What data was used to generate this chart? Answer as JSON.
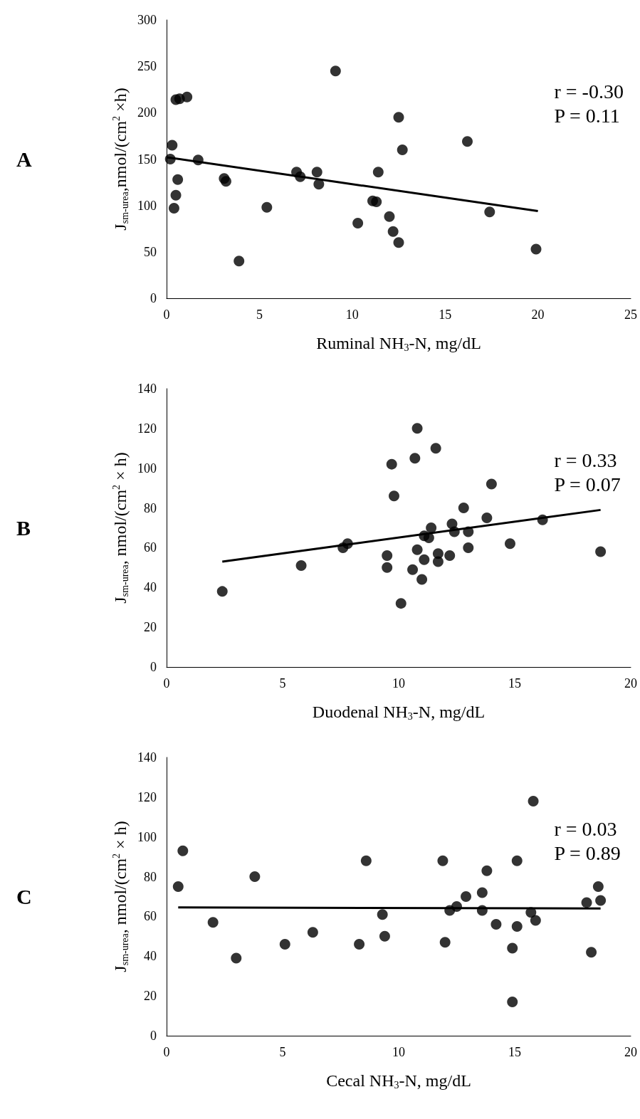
{
  "chart_data": [
    {
      "type": "scatter",
      "title": "A",
      "xlabel": "Ruminal NH$_{3}$-N, mg/dL",
      "ylabel": "J$_{sm-urea}$,nmol/(cm$^{2}$ ×h)",
      "annotations": [
        "r = -0.30",
        "P = 0.11"
      ],
      "xlim": [
        0,
        25
      ],
      "xticks": [
        0,
        5,
        10,
        15,
        20,
        25
      ],
      "ylim": [
        0,
        300
      ],
      "yticks": [
        0,
        50,
        100,
        150,
        200,
        250,
        300
      ],
      "line_style": "solid",
      "series": [
        {
          "marker": "circle",
          "color": "#000000",
          "x": [
            0.2,
            0.3,
            0.5,
            0.7,
            1.1,
            0.6,
            0.5,
            0.4,
            1.7,
            3.1,
            3.2,
            3.9,
            5.4,
            7,
            7.2,
            8.1,
            8.2,
            9.1,
            10.3,
            11.1,
            11.3,
            11.4,
            12,
            12.2,
            12.5,
            12.5,
            12.7,
            16.2,
            17.4,
            19.9
          ],
          "values": [
            150,
            165,
            214,
            215,
            217,
            128,
            111,
            97,
            149,
            129,
            126,
            40,
            98,
            136,
            131,
            136,
            123,
            245,
            81,
            105,
            104,
            136,
            88,
            72,
            60,
            195,
            160,
            169,
            93,
            53
          ]
        },
        {
          "type": "line",
          "marker": "none",
          "color": "#000000",
          "x": [
            0,
            20
          ],
          "values": [
            152,
            94
          ]
        }
      ]
    },
    {
      "type": "scatter",
      "title": "B",
      "xlabel": "Duodenal NH$_{3}$-N, mg/dL",
      "ylabel": "J$_{sm-urea}$, nmol/(cm$^{2}$ × h)",
      "annotations": [
        "r = 0.33",
        "P = 0.07"
      ],
      "xlim": [
        0,
        20
      ],
      "xticks": [
        0,
        5,
        10,
        15,
        20
      ],
      "ylim": [
        0,
        140
      ],
      "yticks": [
        0,
        20,
        40,
        60,
        80,
        100,
        120,
        140
      ],
      "line_style": "solid",
      "series": [
        {
          "marker": "circle",
          "color": "#000000",
          "x": [
            2.4,
            5.8,
            7.6,
            7.8,
            9.5,
            9.5,
            9.7,
            9.8,
            10.1,
            10.6,
            10.7,
            10.8,
            10.8,
            11.0,
            11.1,
            11.1,
            11.3,
            11.4,
            11.6,
            11.7,
            11.7,
            12.2,
            12.3,
            12.4,
            12.8,
            13.0,
            13.0,
            13.8,
            14.0,
            14.8,
            16.2,
            18.7
          ],
          "values": [
            38,
            51,
            60,
            62,
            56,
            50,
            102,
            86,
            32,
            49,
            105,
            120,
            59,
            44,
            54,
            66,
            65,
            70,
            110,
            57,
            53,
            56,
            72,
            68,
            80,
            60,
            68,
            75,
            92,
            62,
            74,
            58
          ]
        },
        {
          "type": "line",
          "marker": "none",
          "color": "#000000",
          "x": [
            2.4,
            18.7
          ],
          "values": [
            53,
            79
          ]
        }
      ]
    },
    {
      "type": "scatter",
      "title": "C",
      "xlabel": "Cecal NH$_{3}$-N, mg/dL",
      "ylabel": "J$_{sm-urea}$, nmol/(cm$^{2}$ × h)",
      "annotations": [
        "r = 0.03",
        "P = 0.89"
      ],
      "xlim": [
        0,
        20
      ],
      "xticks": [
        0,
        5,
        10,
        15,
        20
      ],
      "ylim": [
        0,
        140
      ],
      "yticks": [
        0,
        20,
        40,
        60,
        80,
        100,
        120,
        140
      ],
      "line_style": "solid",
      "series": [
        {
          "marker": "circle",
          "color": "#000000",
          "x": [
            0.5,
            0.7,
            2.0,
            3.0,
            3.8,
            5.1,
            6.3,
            8.3,
            8.6,
            9.3,
            9.4,
            11.9,
            12.0,
            12.2,
            12.5,
            12.9,
            13.6,
            13.6,
            13.8,
            14.2,
            14.9,
            14.9,
            15.1,
            15.1,
            15.7,
            15.8,
            15.9,
            18.1,
            18.3,
            18.6,
            18.7
          ],
          "values": [
            75,
            93,
            57,
            39,
            80,
            46,
            52,
            46,
            88,
            61,
            50,
            88,
            47,
            63,
            65,
            70,
            72,
            63,
            83,
            56,
            17,
            44,
            88,
            55,
            62,
            118,
            58,
            67,
            42,
            75,
            68
          ]
        },
        {
          "type": "line",
          "marker": "none",
          "color": "#000000",
          "x": [
            0.5,
            18.7
          ],
          "values": [
            64.5,
            64
          ]
        }
      ]
    }
  ]
}
